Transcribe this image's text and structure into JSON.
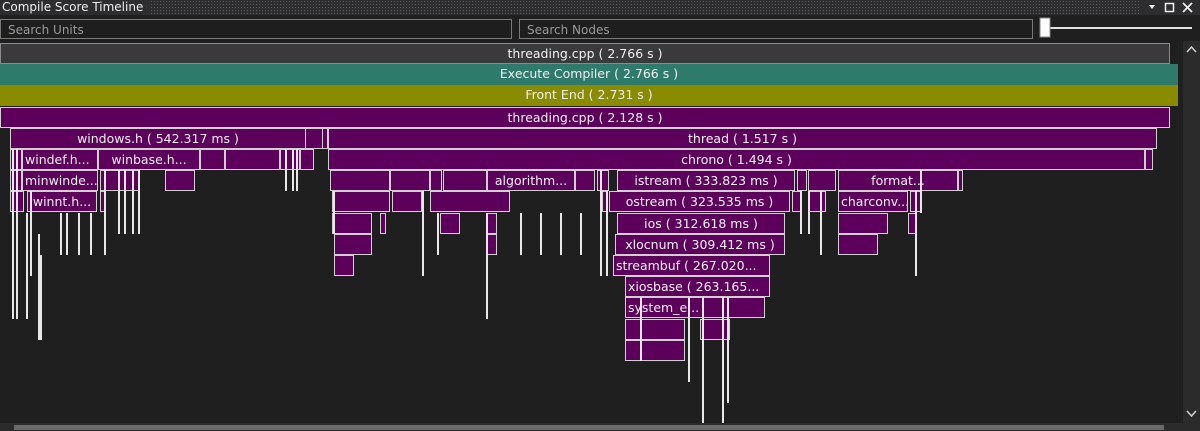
{
  "window": {
    "title": "Compile Score Timeline"
  },
  "search": {
    "units": "Search Units",
    "nodes": "Search Nodes"
  },
  "timeline": {
    "nodes": [
      "threading.cpp ( 2.766 s )",
      "Execute Compiler ( 2.766 s )",
      "Front End ( 2.731 s )",
      "threading.cpp ( 2.128 s )",
      "windows.h ( 542.317 ms )",
      "thread ( 1.517 s )",
      "windef.h...",
      "winbase.h...",
      "chrono ( 1.494 s )",
      "minwinde...",
      "algorithm...",
      "istream ( 333.823 ms )",
      "format...",
      "winnt.h...",
      "ostream ( 323.535 ms )",
      "charconv...",
      "ios ( 312.618 ms )",
      "xlocnum ( 309.412 ms )",
      "streambuf ( 267.020...",
      "xiosbase ( 263.165...",
      "system_e..."
    ]
  }
}
